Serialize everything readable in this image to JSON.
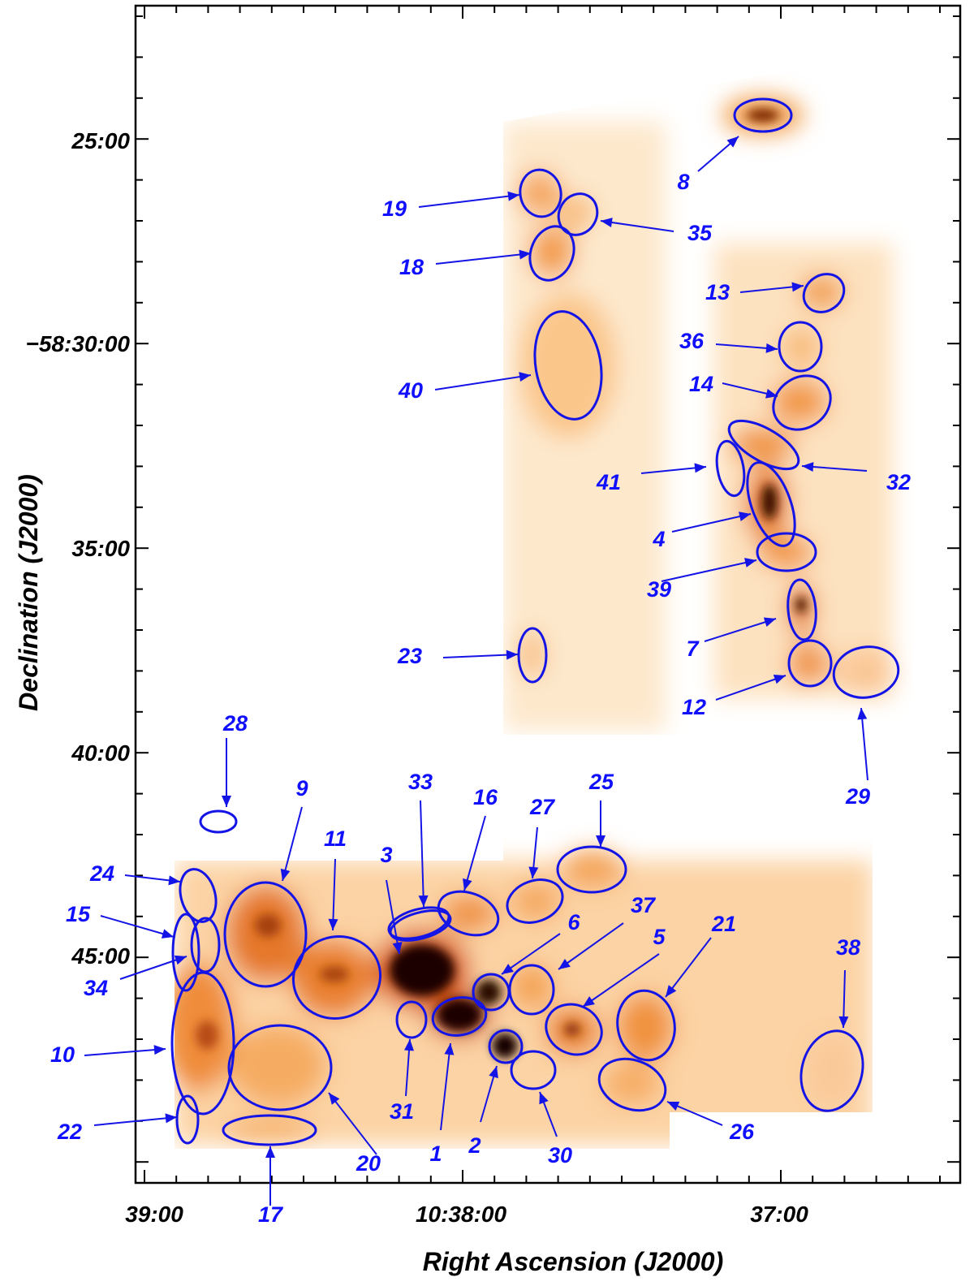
{
  "figure": {
    "x_axis_title": "Right Ascension (J2000)",
    "y_axis_title": "Declination (J2000)",
    "x_ticks": [
      "39:00",
      "10:38:00",
      "37:00"
    ],
    "y_ticks": [
      "25:00",
      "−58:30:00",
      "35:00",
      "40:00",
      "45:00"
    ],
    "colormap": "white-orange-black",
    "region_color": "#1414e6"
  },
  "sources": [
    "1",
    "2",
    "3",
    "4",
    "5",
    "6",
    "7",
    "8",
    "9",
    "10",
    "11",
    "12",
    "13",
    "14",
    "15",
    "16",
    "17",
    "18",
    "19",
    "20",
    "21",
    "22",
    "23",
    "24",
    "25",
    "26",
    "27",
    "28",
    "29",
    "30",
    "31",
    "32",
    "33",
    "34",
    "35",
    "36",
    "37",
    "38",
    "39",
    "40",
    "41"
  ]
}
